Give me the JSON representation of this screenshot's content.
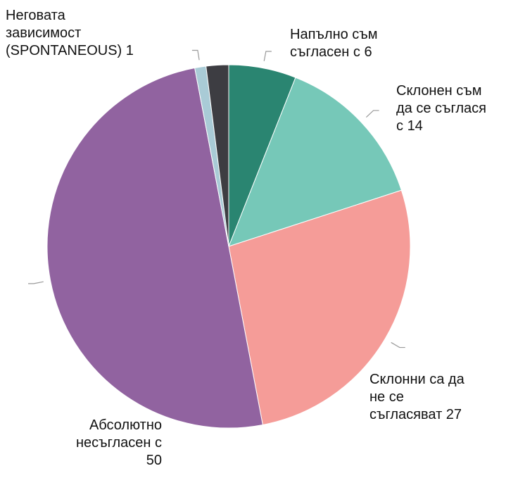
{
  "chart_data": {
    "type": "pie",
    "categories": [
      "Напълно съм съгласен с",
      "Склонен съм да се съглася с",
      "Склонни са да не се съгласяват",
      "Абсолютно несъгласен с",
      "Неговата зависимост (SPONTANEOUS)",
      null
    ],
    "values": [
      6,
      14,
      27,
      50,
      1,
      2
    ],
    "colors": [
      "#2a8571",
      "#76c8b8",
      "#f59c98",
      "#9163a0",
      "#a9cbd6",
      "#3d3d42"
    ]
  }
}
